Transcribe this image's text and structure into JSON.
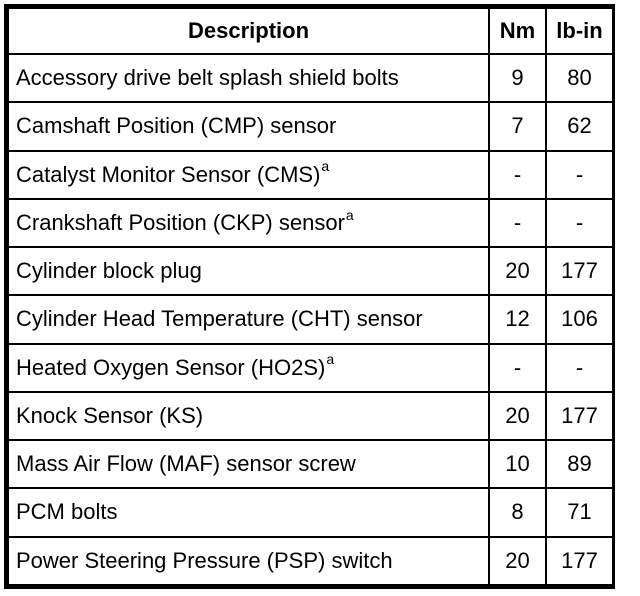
{
  "table": {
    "headers": {
      "description": "Description",
      "nm": "Nm",
      "lbin": "lb-in"
    },
    "rows": [
      {
        "description": "Accessory drive belt splash shield bolts",
        "sup": "",
        "nm": "9",
        "lbin": "80"
      },
      {
        "description": "Camshaft Position (CMP) sensor",
        "sup": "",
        "nm": "7",
        "lbin": "62"
      },
      {
        "description": "Catalyst Monitor Sensor (CMS)",
        "sup": "a",
        "nm": "-",
        "lbin": "-"
      },
      {
        "description": "Crankshaft Position (CKP) sensor",
        "sup": "a",
        "nm": "-",
        "lbin": "-"
      },
      {
        "description": "Cylinder block plug",
        "sup": "",
        "nm": "20",
        "lbin": "177"
      },
      {
        "description": "Cylinder Head Temperature (CHT) sensor",
        "sup": "",
        "nm": "12",
        "lbin": "106"
      },
      {
        "description": "Heated Oxygen Sensor (HO2S)",
        "sup": "a",
        "nm": "-",
        "lbin": "-"
      },
      {
        "description": "Knock Sensor (KS)",
        "sup": "",
        "nm": "20",
        "lbin": "177"
      },
      {
        "description": "Mass Air Flow (MAF) sensor screw",
        "sup": "",
        "nm": "10",
        "lbin": "89"
      },
      {
        "description": "PCM bolts",
        "sup": "",
        "nm": "8",
        "lbin": "71"
      },
      {
        "description": "Power Steering Pressure (PSP) switch",
        "sup": "",
        "nm": "20",
        "lbin": "177"
      }
    ],
    "colors": {
      "border": "#000000",
      "text": "#000000",
      "background": "#ffffff"
    }
  }
}
